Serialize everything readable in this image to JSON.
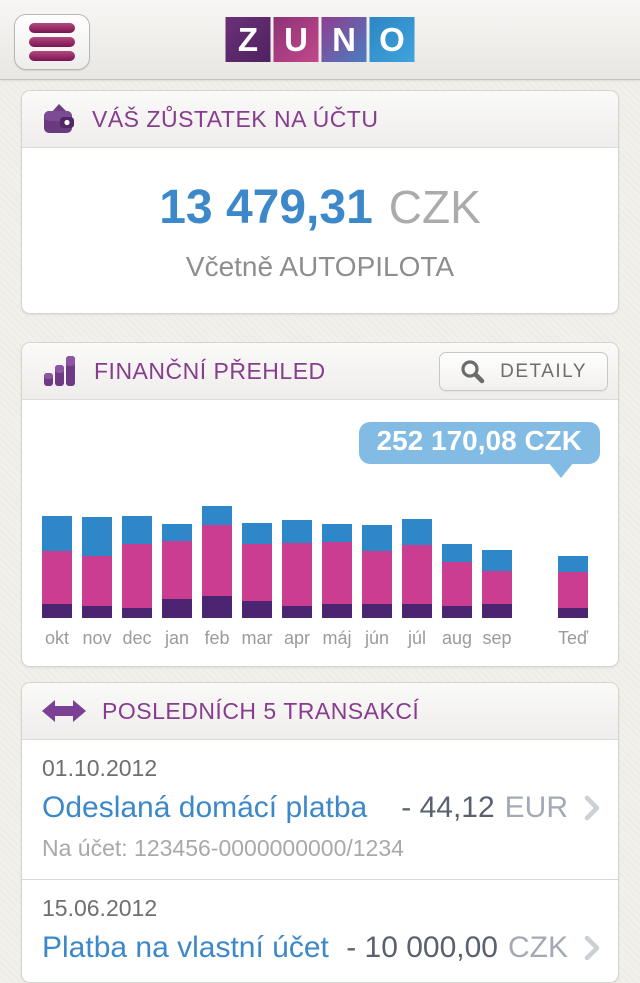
{
  "topbar": {
    "menu_icon": "hamburger-menu",
    "logo_letters": [
      "Z",
      "U",
      "N",
      "O"
    ]
  },
  "balance_card": {
    "title": "VÁŠ ZŮSTATEK NA ÚČTU",
    "amount": "13 479,31",
    "currency": "CZK",
    "note": "Včetně AUTOPILOTA"
  },
  "overview_card": {
    "title": "FINANČNÍ PŘEHLED",
    "details_label": "DETAILY"
  },
  "chart_data": {
    "type": "bar",
    "stacked": true,
    "title": "FINANČNÍ PŘEHLED",
    "categories": [
      "okt",
      "nov",
      "dec",
      "jan",
      "feb",
      "mar",
      "apr",
      "máj",
      "jún",
      "júl",
      "aug",
      "sep",
      "Teď"
    ],
    "series": [
      {
        "name": "bottom",
        "color": "#4b2571",
        "values": [
          14,
          12,
          10,
          19,
          22,
          17,
          12,
          14,
          14,
          14,
          12,
          14,
          10
        ]
      },
      {
        "name": "middle",
        "color": "#ca3d91",
        "values": [
          53,
          50,
          64,
          58,
          71,
          57,
          63,
          62,
          53,
          59,
          44,
          33,
          36
        ]
      },
      {
        "name": "top",
        "color": "#2e87c8",
        "values": [
          35,
          39,
          28,
          17,
          19,
          21,
          23,
          18,
          26,
          26,
          18,
          21,
          16
        ]
      }
    ],
    "value_note": "relative bar heights in pixels; chart has no visible axis or gridlines",
    "grid": false,
    "legend": "none",
    "tooltip": {
      "text": "252 170,08 CZK",
      "category": "Teď"
    }
  },
  "transactions_card": {
    "title": "POSLEDNÍCH 5 TRANSAKCÍ",
    "items": [
      {
        "date": "01.10.2012",
        "title": "Odeslaná domácí platba",
        "amount": "- 44,12",
        "currency": "EUR",
        "detail": "Na účet: 123456-0000000000/1234"
      },
      {
        "date": "15.06.2012",
        "title": "Platba na vlastní účet",
        "amount": "- 10 000,00",
        "currency": "CZK",
        "detail": ""
      }
    ]
  },
  "colors": {
    "accent_purple": "#873d8e",
    "link_blue": "#3c88c9",
    "tooltip_blue": "#82bce4",
    "bar_blue": "#2e87c8",
    "bar_magenta": "#ca3d91",
    "bar_dark_purple": "#4b2571"
  }
}
